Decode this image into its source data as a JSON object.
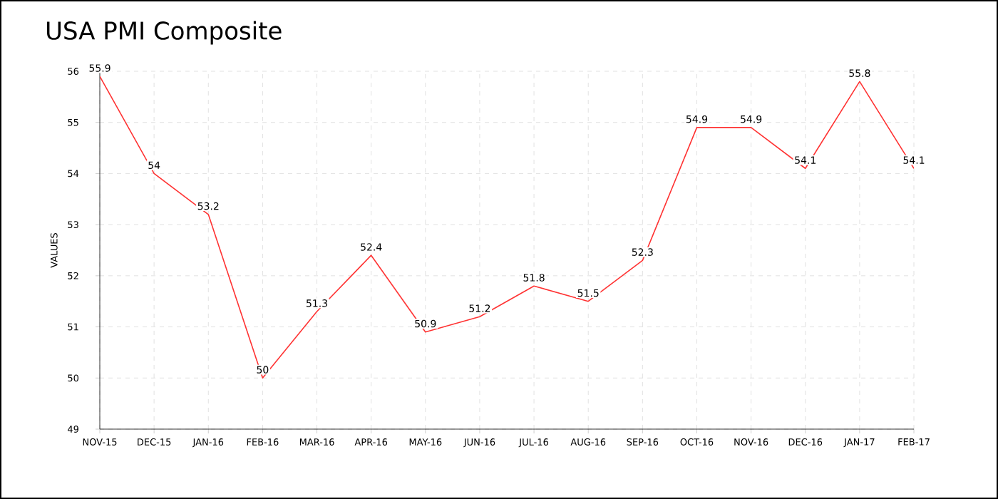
{
  "chart_data": {
    "type": "line",
    "title": "USA PMI Composite",
    "ylabel": "VALUES",
    "categories": [
      "NOV-15",
      "DEC-15",
      "JAN-16",
      "FEB-16",
      "MAR-16",
      "APR-16",
      "MAY-16",
      "JUN-16",
      "JUL-16",
      "AUG-16",
      "SEP-16",
      "OCT-16",
      "NOV-16",
      "DEC-16",
      "JAN-17",
      "FEB-17"
    ],
    "values": [
      55.9,
      54,
      53.2,
      50,
      51.3,
      52.4,
      50.9,
      51.2,
      51.8,
      51.5,
      52.3,
      54.9,
      54.9,
      54.1,
      55.8,
      54.1
    ],
    "color": "#ff3333",
    "ylim": [
      49,
      56
    ],
    "yticks": [
      49,
      50,
      51,
      52,
      53,
      54,
      55,
      56
    ],
    "grid": true,
    "data_labels": true,
    "marker": "none",
    "line_style": "solid"
  }
}
